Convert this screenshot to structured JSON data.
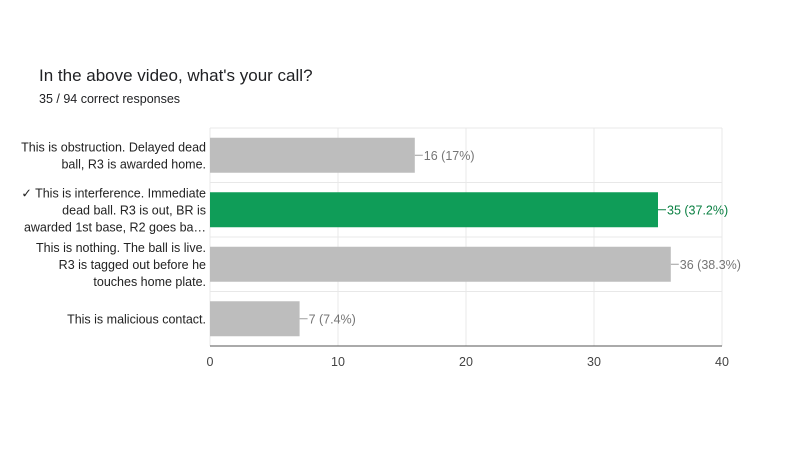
{
  "title": "In the above video, what's your call?",
  "subtitle": "35 / 94 correct responses",
  "colors": {
    "default_bar": "#bdbdbd",
    "correct_bar": "#0f9d58",
    "grid": "#e8e8e8",
    "axis": "#555555",
    "label_default": "#757575",
    "label_correct": "#0b8043"
  },
  "chart_data": {
    "type": "bar",
    "orientation": "horizontal",
    "title": "In the above video, what's your call?",
    "subtitle": "35 / 94 correct responses",
    "categories": [
      [
        "This is obstruction. Delayed dead",
        "ball, R3 is awarded home."
      ],
      [
        "✓ This is interference. Immediate",
        "dead ball. R3 is out, BR is",
        "awarded 1st base, R2 goes ba…"
      ],
      [
        "This is nothing. The ball is live.",
        "R3 is tagged out before he",
        "touches home plate."
      ],
      [
        "This is malicious contact."
      ]
    ],
    "values": [
      16,
      35,
      36,
      7
    ],
    "value_labels": [
      "16 (17%)",
      "35 (37.2%)",
      "36 (38.3%)",
      "7 (7.4%)"
    ],
    "correct_index": 1,
    "xlim": [
      0,
      40
    ],
    "xticks": [
      0,
      10,
      20,
      30,
      40
    ],
    "grid": true,
    "xlabel": "",
    "ylabel": ""
  }
}
